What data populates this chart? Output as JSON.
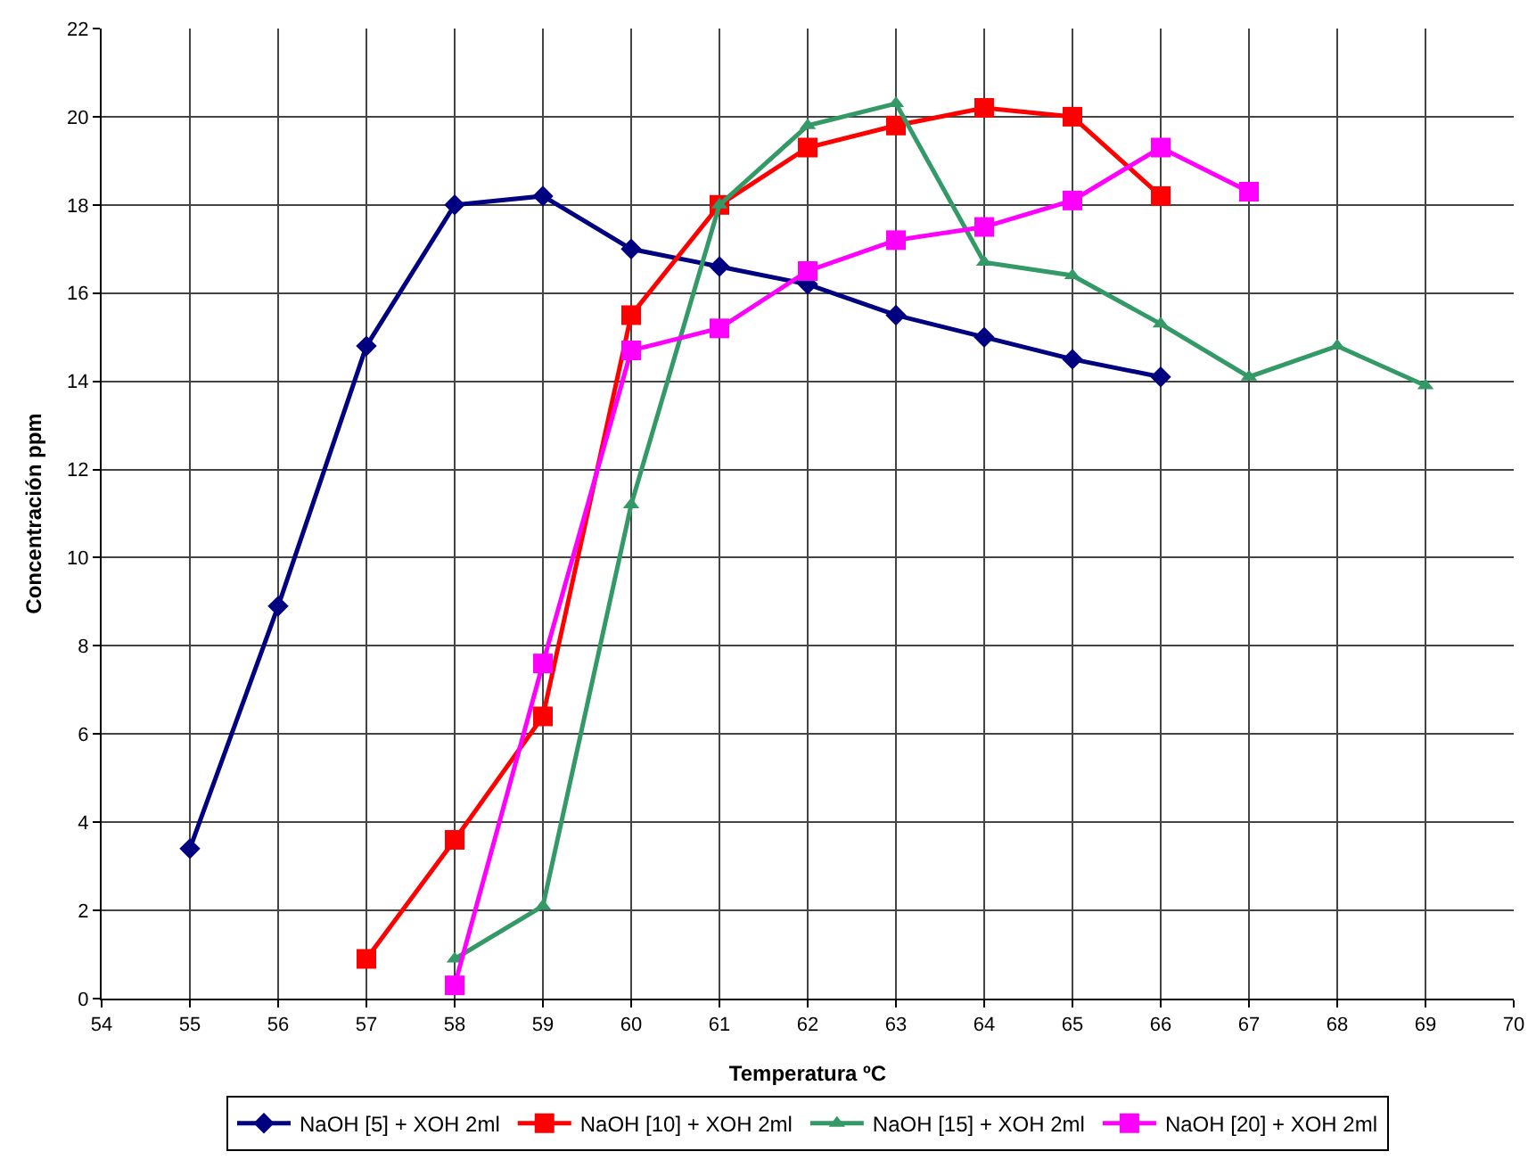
{
  "chart_data": {
    "type": "line",
    "xlabel": "Temperatura ºC",
    "ylabel": "Concentración ppm",
    "xlim": [
      54,
      70
    ],
    "xticks": [
      54,
      55,
      56,
      57,
      58,
      59,
      60,
      61,
      62,
      63,
      64,
      65,
      66,
      67,
      68,
      69,
      70
    ],
    "ylim": [
      0,
      22
    ],
    "yticks": [
      0,
      2,
      4,
      6,
      8,
      10,
      12,
      14,
      16,
      18,
      20,
      22
    ],
    "grid": true,
    "legend": "bottom",
    "line_style": "solid",
    "series": [
      {
        "name": "NaOH [5] + XOH 2ml",
        "color": "#000080",
        "marker": "diamond",
        "x": [
          55,
          56,
          57,
          58,
          59,
          60,
          61,
          62,
          63,
          64,
          65,
          66
        ],
        "values": [
          3.4,
          8.9,
          14.8,
          18.0,
          18.2,
          17.0,
          16.6,
          16.2,
          15.5,
          15.0,
          14.5,
          14.1
        ]
      },
      {
        "name": "NaOH [10] + XOH 2ml",
        "color": "#ff0000",
        "marker": "square",
        "x": [
          57,
          58,
          59,
          60,
          61,
          62,
          63,
          64,
          65,
          66
        ],
        "values": [
          0.9,
          3.6,
          6.4,
          15.5,
          18.0,
          19.3,
          19.8,
          20.2,
          20.0,
          18.2
        ]
      },
      {
        "name": "NaOH [15] + XOH 2ml",
        "color": "#339966",
        "marker": "triangle",
        "x": [
          58,
          59,
          60,
          61,
          62,
          63,
          64,
          65,
          66,
          67,
          68,
          69
        ],
        "values": [
          0.9,
          2.1,
          11.2,
          18.0,
          19.8,
          20.3,
          16.7,
          16.4,
          15.3,
          14.1,
          14.8,
          13.9
        ]
      },
      {
        "name": "NaOH [20] + XOH 2ml",
        "color": "#ff00ff",
        "marker": "square",
        "x": [
          58,
          59,
          60,
          61,
          62,
          63,
          64,
          65,
          66,
          67
        ],
        "values": [
          0.3,
          7.6,
          14.7,
          15.2,
          16.5,
          17.2,
          17.5,
          18.1,
          19.3,
          18.3
        ]
      }
    ]
  }
}
